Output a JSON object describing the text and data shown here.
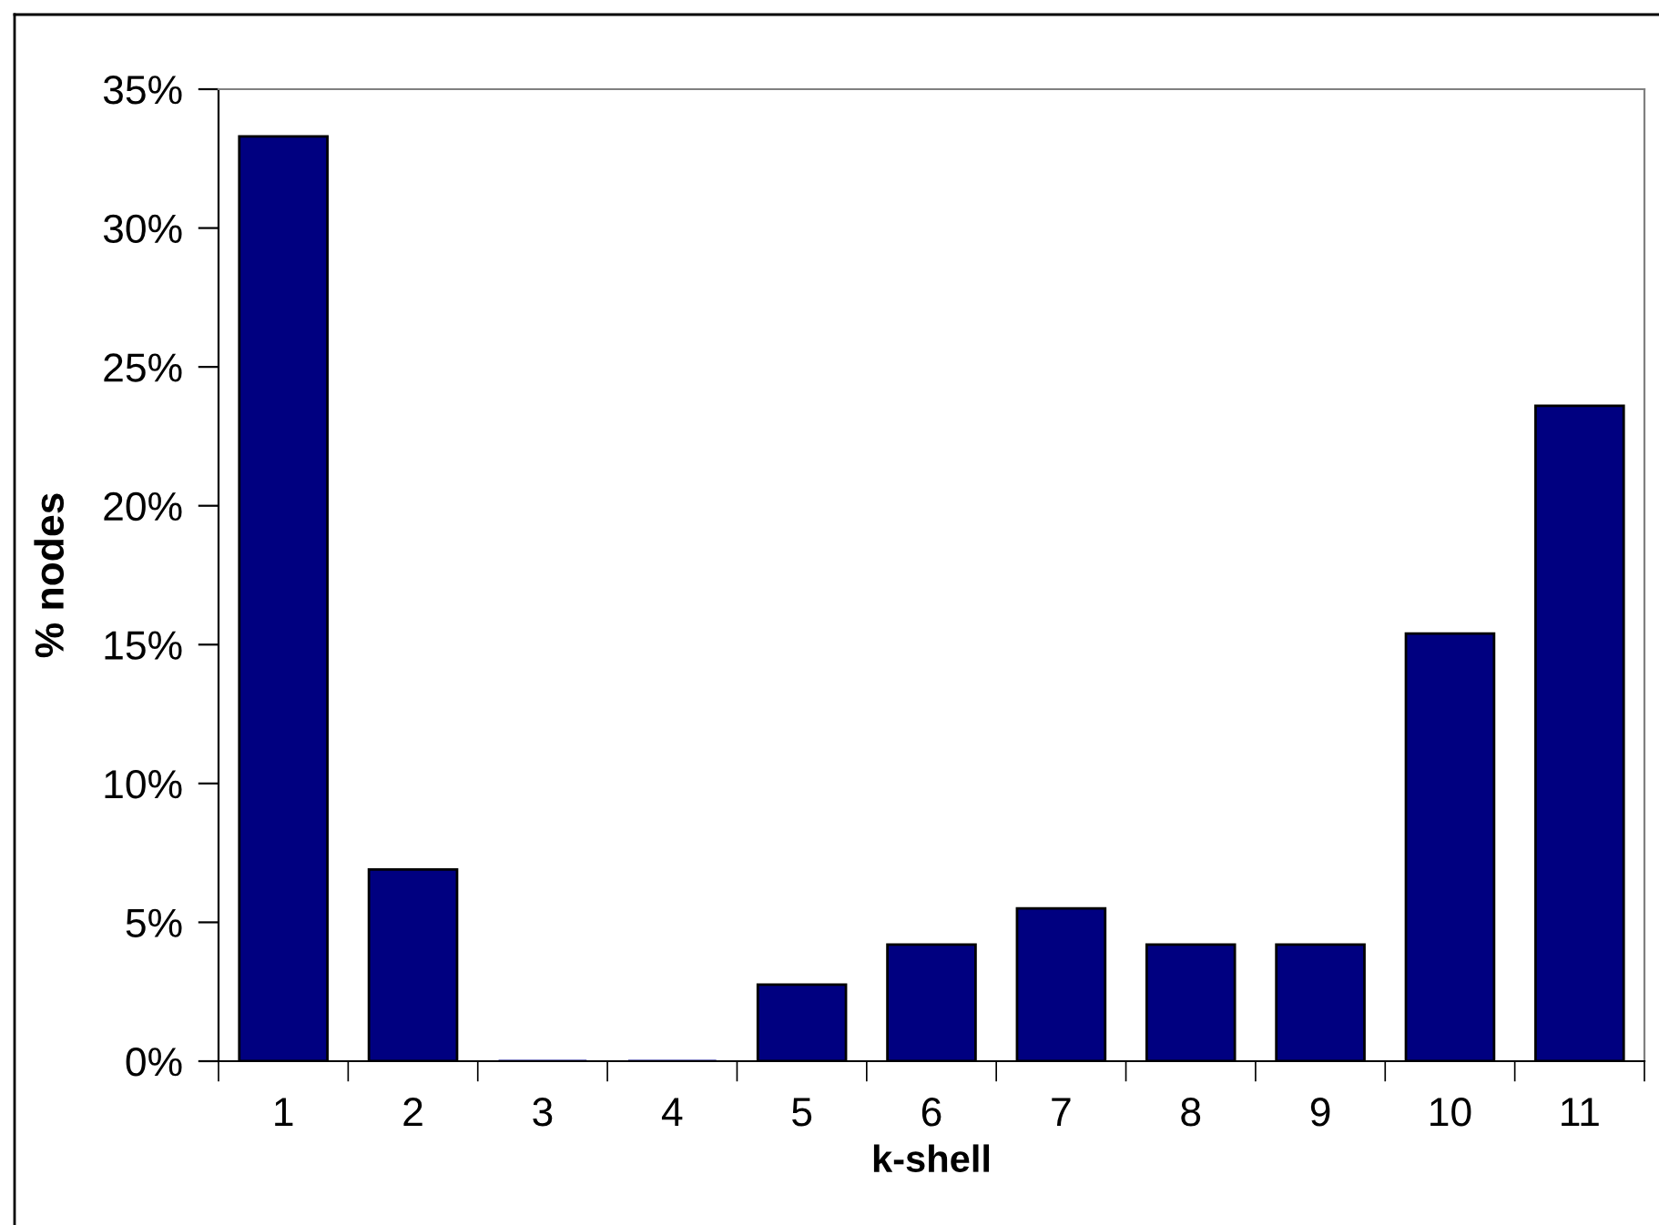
{
  "chart_data": {
    "type": "bar",
    "xlabel": "k-shell",
    "ylabel": "% nodes",
    "categories": [
      "1",
      "2",
      "3",
      "4",
      "5",
      "6",
      "7",
      "8",
      "9",
      "10",
      "11"
    ],
    "values": [
      33.3,
      6.9,
      0,
      0,
      2.76,
      4.2,
      5.5,
      4.2,
      4.2,
      15.4,
      23.6
    ],
    "color": "#000080",
    "ylim": [
      0,
      35
    ],
    "yticks": [
      {
        "value": 0,
        "label": "0%"
      },
      {
        "value": 5,
        "label": "5%"
      },
      {
        "value": 10,
        "label": "10%"
      },
      {
        "value": 15,
        "label": "15%"
      },
      {
        "value": 20,
        "label": "20%"
      },
      {
        "value": 25,
        "label": "25%"
      },
      {
        "value": 30,
        "label": "30%"
      },
      {
        "value": 35,
        "label": "35%"
      }
    ],
    "grid": false,
    "legend": false
  }
}
